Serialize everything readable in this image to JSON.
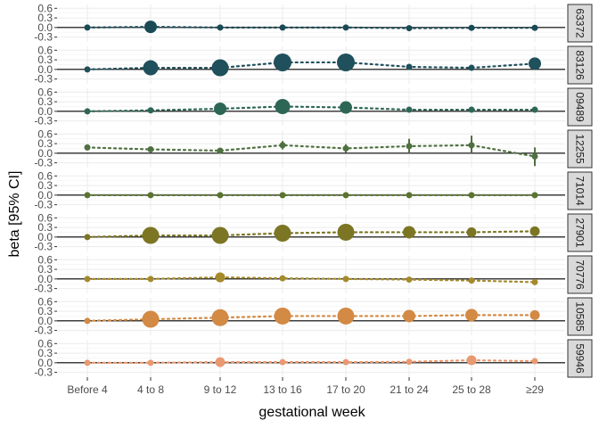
{
  "chart_data": {
    "type": "scatter",
    "xlabel": "gestational week",
    "ylabel": "beta [95% CI]",
    "categories": [
      "Before 4",
      "4 to 8",
      "9 to 12",
      "13 to 16",
      "17 to 20",
      "21 to 24",
      "25 to 28",
      "≥29"
    ],
    "y_ticks": [
      -0.3,
      0.0,
      0.3,
      0.6
    ],
    "ylim": [
      -0.45,
      0.72
    ],
    "grid": true,
    "hline": 0,
    "panels": [
      {
        "label": "63372",
        "color": "#1b4a57",
        "points": [
          {
            "x": "Before 4",
            "y": 0.0,
            "lo": 0.0,
            "hi": 0.0,
            "size": 1
          },
          {
            "x": "4 to 8",
            "y": 0.02,
            "lo": 0.02,
            "hi": 0.02,
            "size": 3
          },
          {
            "x": "9 to 12",
            "y": 0.0,
            "lo": 0.0,
            "hi": 0.0,
            "size": 1
          },
          {
            "x": "13 to 16",
            "y": 0.0,
            "lo": 0.0,
            "hi": 0.0,
            "size": 1
          },
          {
            "x": "17 to 20",
            "y": 0.0,
            "lo": 0.0,
            "hi": 0.0,
            "size": 1
          },
          {
            "x": "21 to 24",
            "y": -0.02,
            "lo": -0.02,
            "hi": -0.02,
            "size": 1
          },
          {
            "x": "25 to 28",
            "y": -0.01,
            "lo": -0.01,
            "hi": -0.01,
            "size": 1
          },
          {
            "x": "≥29",
            "y": -0.01,
            "lo": -0.01,
            "hi": -0.01,
            "size": 1
          }
        ]
      },
      {
        "label": "83126",
        "color": "#1f505b",
        "points": [
          {
            "x": "Before 4",
            "y": 0.0,
            "lo": 0.0,
            "hi": 0.0,
            "size": 1
          },
          {
            "x": "4 to 8",
            "y": 0.05,
            "lo": 0.05,
            "hi": 0.05,
            "size": 4
          },
          {
            "x": "9 to 12",
            "y": 0.05,
            "lo": 0.05,
            "hi": 0.05,
            "size": 5
          },
          {
            "x": "13 to 16",
            "y": 0.22,
            "lo": 0.22,
            "hi": 0.22,
            "size": 6
          },
          {
            "x": "17 to 20",
            "y": 0.22,
            "lo": 0.22,
            "hi": 0.22,
            "size": 6
          },
          {
            "x": "21 to 24",
            "y": 0.08,
            "lo": 0.08,
            "hi": 0.08,
            "size": 1
          },
          {
            "x": "25 to 28",
            "y": 0.05,
            "lo": 0.05,
            "hi": 0.05,
            "size": 1
          },
          {
            "x": "≥29",
            "y": 0.18,
            "lo": 0.18,
            "hi": 0.18,
            "size": 3
          }
        ]
      },
      {
        "label": "09489",
        "color": "#2e6656",
        "points": [
          {
            "x": "Before 4",
            "y": 0.0,
            "lo": 0.0,
            "hi": 0.0,
            "size": 1
          },
          {
            "x": "4 to 8",
            "y": 0.03,
            "lo": 0.03,
            "hi": 0.03,
            "size": 1
          },
          {
            "x": "9 to 12",
            "y": 0.08,
            "lo": 0.08,
            "hi": 0.08,
            "size": 3
          },
          {
            "x": "13 to 16",
            "y": 0.15,
            "lo": 0.15,
            "hi": 0.15,
            "size": 4
          },
          {
            "x": "17 to 20",
            "y": 0.12,
            "lo": 0.12,
            "hi": 0.12,
            "size": 3
          },
          {
            "x": "21 to 24",
            "y": 0.05,
            "lo": 0.05,
            "hi": 0.05,
            "size": 1
          },
          {
            "x": "25 to 28",
            "y": 0.05,
            "lo": 0.05,
            "hi": 0.05,
            "size": 1
          },
          {
            "x": "≥29",
            "y": 0.05,
            "lo": 0.05,
            "hi": 0.05,
            "size": 1
          }
        ]
      },
      {
        "label": "12255",
        "color": "#4f7040",
        "points": [
          {
            "x": "Before 4",
            "y": 0.18,
            "lo": 0.18,
            "hi": 0.18,
            "size": 1
          },
          {
            "x": "4 to 8",
            "y": 0.12,
            "lo": 0.12,
            "hi": 0.12,
            "size": 1
          },
          {
            "x": "9 to 12",
            "y": 0.08,
            "lo": 0.08,
            "hi": 0.08,
            "size": 1
          },
          {
            "x": "13 to 16",
            "y": 0.25,
            "lo": 0.12,
            "hi": 0.38,
            "size": 1
          },
          {
            "x": "17 to 20",
            "y": 0.15,
            "lo": 0.02,
            "hi": 0.28,
            "size": 1
          },
          {
            "x": "21 to 24",
            "y": 0.22,
            "lo": 0.0,
            "hi": 0.45,
            "size": 1
          },
          {
            "x": "25 to 28",
            "y": 0.25,
            "lo": 0.0,
            "hi": 0.55,
            "size": 1
          },
          {
            "x": "≥29",
            "y": -0.1,
            "lo": -0.4,
            "hi": 0.18,
            "size": 1
          }
        ]
      },
      {
        "label": "71014",
        "color": "#5a7431",
        "points": [
          {
            "x": "Before 4",
            "y": 0.0,
            "lo": 0.0,
            "hi": 0.0,
            "size": 1
          },
          {
            "x": "4 to 8",
            "y": 0.0,
            "lo": 0.0,
            "hi": 0.0,
            "size": 1
          },
          {
            "x": "9 to 12",
            "y": 0.0,
            "lo": 0.0,
            "hi": 0.0,
            "size": 1
          },
          {
            "x": "13 to 16",
            "y": 0.0,
            "lo": 0.0,
            "hi": 0.0,
            "size": 1
          },
          {
            "x": "17 to 20",
            "y": 0.0,
            "lo": 0.0,
            "hi": 0.0,
            "size": 1
          },
          {
            "x": "21 to 24",
            "y": 0.0,
            "lo": 0.0,
            "hi": 0.0,
            "size": 1
          },
          {
            "x": "25 to 28",
            "y": 0.0,
            "lo": 0.0,
            "hi": 0.0,
            "size": 1
          },
          {
            "x": "≥29",
            "y": 0.0,
            "lo": 0.0,
            "hi": 0.0,
            "size": 1
          }
        ]
      },
      {
        "label": "27901",
        "color": "#7c7624",
        "points": [
          {
            "x": "Before 4",
            "y": 0.0,
            "lo": 0.0,
            "hi": 0.0,
            "size": 1
          },
          {
            "x": "4 to 8",
            "y": 0.05,
            "lo": 0.05,
            "hi": 0.05,
            "size": 5
          },
          {
            "x": "9 to 12",
            "y": 0.05,
            "lo": 0.05,
            "hi": 0.05,
            "size": 5
          },
          {
            "x": "13 to 16",
            "y": 0.12,
            "lo": 0.12,
            "hi": 0.12,
            "size": 5
          },
          {
            "x": "17 to 20",
            "y": 0.15,
            "lo": 0.15,
            "hi": 0.15,
            "size": 5
          },
          {
            "x": "21 to 24",
            "y": 0.15,
            "lo": 0.15,
            "hi": 0.15,
            "size": 3
          },
          {
            "x": "25 to 28",
            "y": 0.15,
            "lo": 0.15,
            "hi": 0.15,
            "size": 2
          },
          {
            "x": "≥29",
            "y": 0.18,
            "lo": 0.18,
            "hi": 0.18,
            "size": 2
          }
        ]
      },
      {
        "label": "70776",
        "color": "#a58a2c",
        "points": [
          {
            "x": "Before 4",
            "y": 0.0,
            "lo": 0.0,
            "hi": 0.0,
            "size": 1
          },
          {
            "x": "4 to 8",
            "y": 0.0,
            "lo": 0.0,
            "hi": 0.0,
            "size": 1
          },
          {
            "x": "9 to 12",
            "y": 0.05,
            "lo": 0.05,
            "hi": 0.05,
            "size": 2
          },
          {
            "x": "13 to 16",
            "y": 0.02,
            "lo": 0.02,
            "hi": 0.02,
            "size": 1
          },
          {
            "x": "17 to 20",
            "y": 0.0,
            "lo": 0.0,
            "hi": 0.0,
            "size": 1
          },
          {
            "x": "21 to 24",
            "y": -0.02,
            "lo": -0.02,
            "hi": -0.02,
            "size": 1
          },
          {
            "x": "25 to 28",
            "y": -0.05,
            "lo": -0.1,
            "hi": 0.0,
            "size": 1
          },
          {
            "x": "≥29",
            "y": -0.1,
            "lo": -0.18,
            "hi": -0.02,
            "size": 1
          }
        ]
      },
      {
        "label": "10585",
        "color": "#d28a45",
        "points": [
          {
            "x": "Before 4",
            "y": 0.0,
            "lo": 0.0,
            "hi": 0.0,
            "size": 1
          },
          {
            "x": "4 to 8",
            "y": 0.05,
            "lo": 0.05,
            "hi": 0.05,
            "size": 5
          },
          {
            "x": "9 to 12",
            "y": 0.1,
            "lo": 0.1,
            "hi": 0.1,
            "size": 5
          },
          {
            "x": "13 to 16",
            "y": 0.15,
            "lo": 0.15,
            "hi": 0.15,
            "size": 5
          },
          {
            "x": "17 to 20",
            "y": 0.15,
            "lo": 0.15,
            "hi": 0.15,
            "size": 5
          },
          {
            "x": "21 to 24",
            "y": 0.15,
            "lo": 0.15,
            "hi": 0.15,
            "size": 3
          },
          {
            "x": "25 to 28",
            "y": 0.18,
            "lo": 0.18,
            "hi": 0.18,
            "size": 3
          },
          {
            "x": "≥29",
            "y": 0.18,
            "lo": 0.18,
            "hi": 0.18,
            "size": 2
          }
        ]
      },
      {
        "label": "59946",
        "color": "#e99970",
        "points": [
          {
            "x": "Before 4",
            "y": 0.0,
            "lo": 0.0,
            "hi": 0.0,
            "size": 1
          },
          {
            "x": "4 to 8",
            "y": 0.0,
            "lo": 0.0,
            "hi": 0.0,
            "size": 1
          },
          {
            "x": "9 to 12",
            "y": 0.02,
            "lo": 0.02,
            "hi": 0.02,
            "size": 2
          },
          {
            "x": "13 to 16",
            "y": 0.02,
            "lo": 0.02,
            "hi": 0.02,
            "size": 1
          },
          {
            "x": "17 to 20",
            "y": 0.02,
            "lo": 0.02,
            "hi": 0.02,
            "size": 1
          },
          {
            "x": "21 to 24",
            "y": 0.03,
            "lo": 0.03,
            "hi": 0.03,
            "size": 1
          },
          {
            "x": "25 to 28",
            "y": 0.08,
            "lo": 0.08,
            "hi": 0.08,
            "size": 2
          },
          {
            "x": "≥29",
            "y": 0.05,
            "lo": 0.05,
            "hi": 0.05,
            "size": 1
          }
        ]
      }
    ]
  }
}
